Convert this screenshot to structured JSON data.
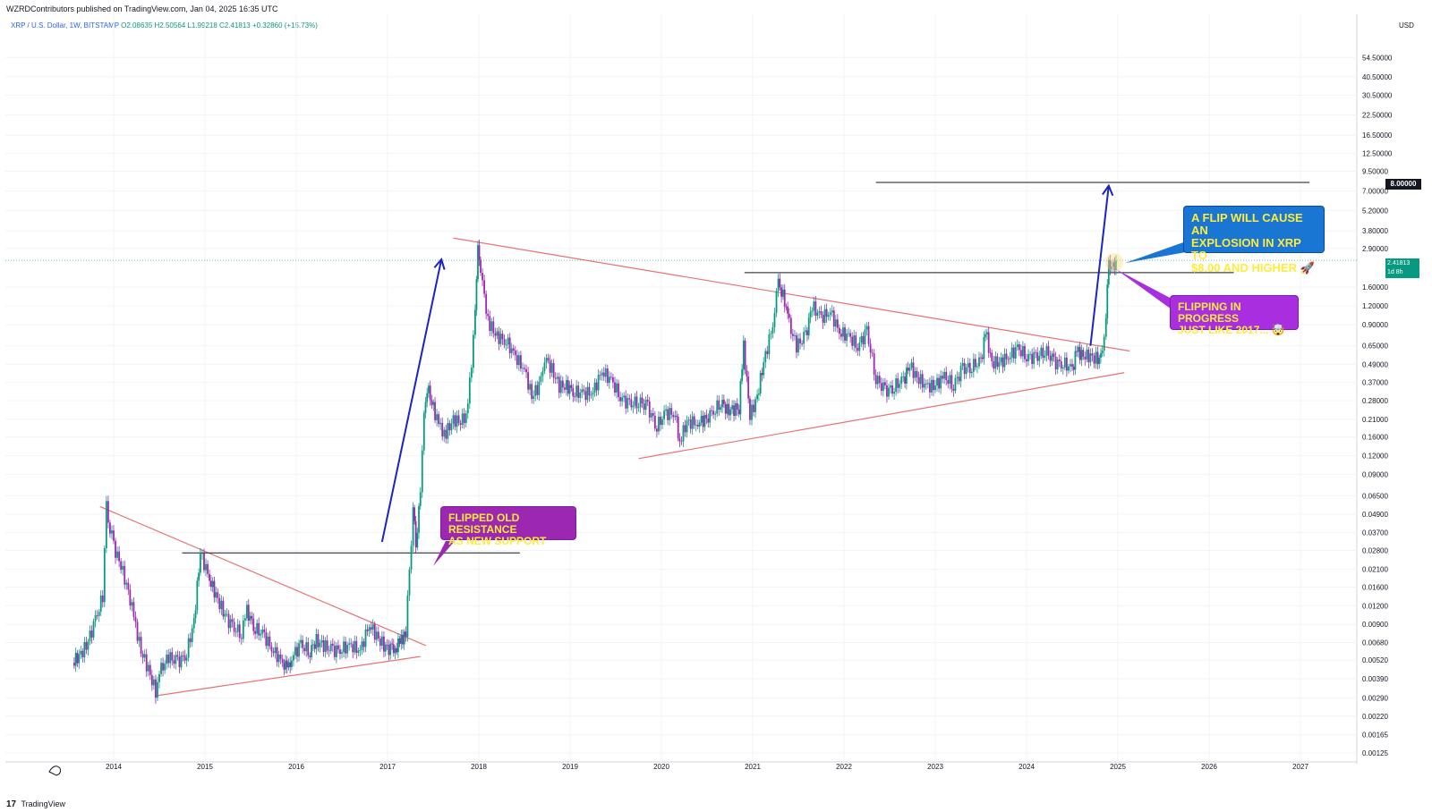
{
  "header": {
    "publisher": "WZRDContributors published on TradingView.com, Jan 04, 2025 16:35 UTC",
    "symbol": "XRP / U.S. Dollar, 1W, BITSTAMP",
    "ohlc": "O2.08635  H2.50564  L1.99218  C2.41813  +0.32860 (+15.73%)"
  },
  "footer": {
    "brand": "TradingView",
    "logo": "17"
  },
  "price_axis": {
    "currency": "USD",
    "labels": [
      "54.50000",
      "40.50000",
      "30.50000",
      "22.50000",
      "16.50000",
      "12.50000",
      "9.50000",
      "7.00000",
      "5.20000",
      "3.80000",
      "2.90000",
      "1.60000",
      "1.20000",
      "0.90000",
      "0.65000",
      "0.49000",
      "0.37000",
      "0.28000",
      "0.21000",
      "0.16000",
      "0.12000",
      "0.09000",
      "0.06500",
      "0.04900",
      "0.03700",
      "0.02800",
      "0.02100",
      "0.01600",
      "0.01200",
      "0.00900",
      "0.00680",
      "0.00520",
      "0.00390",
      "0.00290",
      "0.00220",
      "0.00165",
      "0.00125"
    ],
    "current_price": "2.41813",
    "countdown": "1d 8h",
    "target_label": "8.00000"
  },
  "callouts": {
    "flip_support": [
      "FLIPPED OLD RESISTANCE",
      "AS NEW SUPPORT"
    ],
    "flip_cause": [
      "A FLIP WILL CAUSE AN",
      "EXPLOSION IN XRP TO",
      "$8.00 AND HIGHER 🚀"
    ],
    "flipping": [
      "FLIPPING IN PROGRESS",
      "JUST LIKE 2017... 🤯"
    ]
  },
  "colors": {
    "up": "#089981",
    "down": "#9c27b0",
    "trendline": "#e57373",
    "arrow": "#1a23c8",
    "hline": "#131722"
  },
  "chart_data": {
    "type": "candlestick",
    "symbol": "XRP / U.S. Dollar",
    "interval": "1W",
    "exchange": "BITSTAMP",
    "y_scale": "log",
    "ylim": [
      0.00115,
      70
    ],
    "x_ticks": [
      "2014",
      "2015",
      "2016",
      "2017",
      "2018",
      "2019",
      "2020",
      "2021",
      "2022",
      "2023",
      "2024",
      "2025",
      "2026",
      "2027"
    ],
    "price_path": [
      [
        2013.55,
        0.005
      ],
      [
        2013.62,
        0.0055
      ],
      [
        2013.7,
        0.0065
      ],
      [
        2013.8,
        0.0095
      ],
      [
        2013.88,
        0.014
      ],
      [
        2013.92,
        0.054
      ],
      [
        2013.96,
        0.04
      ],
      [
        2014.0,
        0.03
      ],
      [
        2014.08,
        0.022
      ],
      [
        2014.16,
        0.015
      ],
      [
        2014.22,
        0.01
      ],
      [
        2014.3,
        0.006
      ],
      [
        2014.38,
        0.0045
      ],
      [
        2014.46,
        0.0032
      ],
      [
        2014.52,
        0.0045
      ],
      [
        2014.6,
        0.0055
      ],
      [
        2014.7,
        0.005
      ],
      [
        2014.8,
        0.0058
      ],
      [
        2014.88,
        0.0095
      ],
      [
        2014.95,
        0.027
      ],
      [
        2015.05,
        0.018
      ],
      [
        2015.12,
        0.014
      ],
      [
        2015.2,
        0.011
      ],
      [
        2015.3,
        0.0085
      ],
      [
        2015.4,
        0.008
      ],
      [
        2015.46,
        0.011
      ],
      [
        2015.55,
        0.0085
      ],
      [
        2015.65,
        0.0075
      ],
      [
        2015.75,
        0.006
      ],
      [
        2015.85,
        0.005
      ],
      [
        2015.9,
        0.0045
      ],
      [
        2015.95,
        0.0055
      ],
      [
        2016.05,
        0.0065
      ],
      [
        2016.15,
        0.006
      ],
      [
        2016.22,
        0.007
      ],
      [
        2016.3,
        0.0065
      ],
      [
        2016.4,
        0.006
      ],
      [
        2016.5,
        0.0062
      ],
      [
        2016.6,
        0.0065
      ],
      [
        2016.7,
        0.006
      ],
      [
        2016.8,
        0.009
      ],
      [
        2016.88,
        0.0075
      ],
      [
        2016.96,
        0.0065
      ],
      [
        2017.05,
        0.006
      ],
      [
        2017.1,
        0.0065
      ],
      [
        2017.15,
        0.007
      ],
      [
        2017.2,
        0.008
      ],
      [
        2017.24,
        0.02
      ],
      [
        2017.28,
        0.055
      ],
      [
        2017.31,
        0.03
      ],
      [
        2017.36,
        0.065
      ],
      [
        2017.4,
        0.25
      ],
      [
        2017.45,
        0.32
      ],
      [
        2017.52,
        0.23
      ],
      [
        2017.58,
        0.18
      ],
      [
        2017.64,
        0.17
      ],
      [
        2017.72,
        0.21
      ],
      [
        2017.8,
        0.2
      ],
      [
        2017.86,
        0.23
      ],
      [
        2017.92,
        0.45
      ],
      [
        2017.96,
        1.2
      ],
      [
        2017.99,
        2.8
      ],
      [
        2018.02,
        2.2
      ],
      [
        2018.06,
        1.3
      ],
      [
        2018.12,
        0.9
      ],
      [
        2018.2,
        0.75
      ],
      [
        2018.3,
        0.7
      ],
      [
        2018.4,
        0.55
      ],
      [
        2018.5,
        0.45
      ],
      [
        2018.58,
        0.3
      ],
      [
        2018.66,
        0.35
      ],
      [
        2018.72,
        0.55
      ],
      [
        2018.8,
        0.45
      ],
      [
        2018.88,
        0.35
      ],
      [
        2018.96,
        0.35
      ],
      [
        2019.05,
        0.32
      ],
      [
        2019.15,
        0.31
      ],
      [
        2019.25,
        0.32
      ],
      [
        2019.35,
        0.44
      ],
      [
        2019.45,
        0.38
      ],
      [
        2019.55,
        0.3
      ],
      [
        2019.65,
        0.26
      ],
      [
        2019.75,
        0.28
      ],
      [
        2019.85,
        0.25
      ],
      [
        2019.95,
        0.19
      ],
      [
        2020.05,
        0.23
      ],
      [
        2020.15,
        0.23
      ],
      [
        2020.2,
        0.15
      ],
      [
        2020.28,
        0.2
      ],
      [
        2020.4,
        0.2
      ],
      [
        2020.55,
        0.22
      ],
      [
        2020.65,
        0.28
      ],
      [
        2020.72,
        0.24
      ],
      [
        2020.85,
        0.25
      ],
      [
        2020.9,
        0.65
      ],
      [
        2020.97,
        0.22
      ],
      [
        2021.05,
        0.3
      ],
      [
        2021.12,
        0.5
      ],
      [
        2021.22,
        0.9
      ],
      [
        2021.28,
        1.7
      ],
      [
        2021.35,
        1.3
      ],
      [
        2021.4,
        0.9
      ],
      [
        2021.48,
        0.65
      ],
      [
        2021.58,
        0.75
      ],
      [
        2021.65,
        1.2
      ],
      [
        2021.75,
        1.0
      ],
      [
        2021.85,
        1.1
      ],
      [
        2021.95,
        0.8
      ],
      [
        2022.05,
        0.75
      ],
      [
        2022.15,
        0.65
      ],
      [
        2022.25,
        0.8
      ],
      [
        2022.35,
        0.4
      ],
      [
        2022.45,
        0.32
      ],
      [
        2022.55,
        0.35
      ],
      [
        2022.65,
        0.38
      ],
      [
        2022.72,
        0.48
      ],
      [
        2022.8,
        0.4
      ],
      [
        2022.9,
        0.35
      ],
      [
        2022.98,
        0.35
      ],
      [
        2023.1,
        0.4
      ],
      [
        2023.2,
        0.36
      ],
      [
        2023.3,
        0.45
      ],
      [
        2023.4,
        0.48
      ],
      [
        2023.5,
        0.5
      ],
      [
        2023.55,
        0.82
      ],
      [
        2023.62,
        0.5
      ],
      [
        2023.7,
        0.5
      ],
      [
        2023.8,
        0.55
      ],
      [
        2023.9,
        0.62
      ],
      [
        2024.0,
        0.56
      ],
      [
        2024.1,
        0.53
      ],
      [
        2024.2,
        0.62
      ],
      [
        2024.3,
        0.5
      ],
      [
        2024.4,
        0.5
      ],
      [
        2024.5,
        0.45
      ],
      [
        2024.55,
        0.6
      ],
      [
        2024.62,
        0.56
      ],
      [
        2024.7,
        0.55
      ],
      [
        2024.78,
        0.53
      ],
      [
        2024.83,
        0.55
      ],
      [
        2024.87,
        1.1
      ],
      [
        2024.9,
        2.2
      ],
      [
        2024.93,
        2.4
      ],
      [
        2024.95,
        2.2
      ],
      [
        2024.98,
        2.41
      ]
    ],
    "current_price": 2.41813,
    "target_price": 8.0,
    "horizontal_levels": [
      {
        "x1": 2014.75,
        "x2": 2018.45,
        "y": 0.027
      },
      {
        "x1": 2020.91,
        "x2": 2026.27,
        "y": 2.0
      },
      {
        "x1": 2022.35,
        "x2": 2027.1,
        "y": 8.0
      }
    ],
    "trendlines": [
      {
        "x1": 2013.85,
        "y1": 0.055,
        "x2": 2017.42,
        "y2": 0.0065
      },
      {
        "x1": 2014.45,
        "y1": 0.003,
        "x2": 2017.36,
        "y2": 0.0055
      },
      {
        "x1": 2017.72,
        "y1": 3.4,
        "x2": 2025.13,
        "y2": 0.6
      },
      {
        "x1": 2019.75,
        "y1": 0.115,
        "x2": 2025.07,
        "y2": 0.43
      }
    ],
    "arrows": [
      {
        "x1": 2016.94,
        "y1": 0.032,
        "x2": 2017.59,
        "y2": 2.45
      },
      {
        "x1": 2024.7,
        "y1": 0.65,
        "x2": 2024.9,
        "y2": 7.6
      }
    ],
    "marker_circle": {
      "x": 2024.96,
      "y": 2.35
    }
  }
}
